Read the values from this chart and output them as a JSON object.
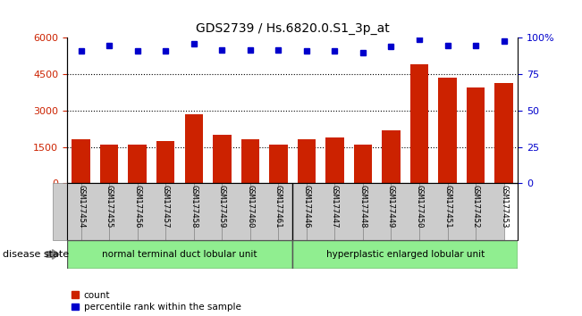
{
  "title": "GDS2739 / Hs.6820.0.S1_3p_at",
  "samples": [
    "GSM177454",
    "GSM177455",
    "GSM177456",
    "GSM177457",
    "GSM177458",
    "GSM177459",
    "GSM177460",
    "GSM177461",
    "GSM177446",
    "GSM177447",
    "GSM177448",
    "GSM177449",
    "GSM177450",
    "GSM177451",
    "GSM177452",
    "GSM177453"
  ],
  "counts": [
    1800,
    1600,
    1600,
    1750,
    2850,
    2000,
    1800,
    1600,
    1800,
    1900,
    1600,
    2200,
    4900,
    4350,
    3950,
    4150
  ],
  "percentiles": [
    91,
    95,
    91,
    91,
    96,
    92,
    92,
    92,
    91,
    91,
    90,
    94,
    99,
    95,
    95,
    98
  ],
  "group1_label": "normal terminal duct lobular unit",
  "group2_label": "hyperplastic enlarged lobular unit",
  "group1_count": 8,
  "group2_count": 8,
  "bar_color": "#cc2200",
  "dot_color": "#0000cc",
  "ylim_left": [
    0,
    6000
  ],
  "ylim_right": [
    0,
    100
  ],
  "yticks_left": [
    0,
    1500,
    3000,
    4500,
    6000
  ],
  "yticks_right": [
    0,
    25,
    50,
    75,
    100
  ],
  "grid_values": [
    1500,
    3000,
    4500
  ],
  "legend_count_label": "count",
  "legend_pct_label": "percentile rank within the sample",
  "disease_state_label": "disease state",
  "background_color": "#ffffff",
  "group_bg_color": "#90ee90",
  "xticklabel_bg": "#cccccc"
}
